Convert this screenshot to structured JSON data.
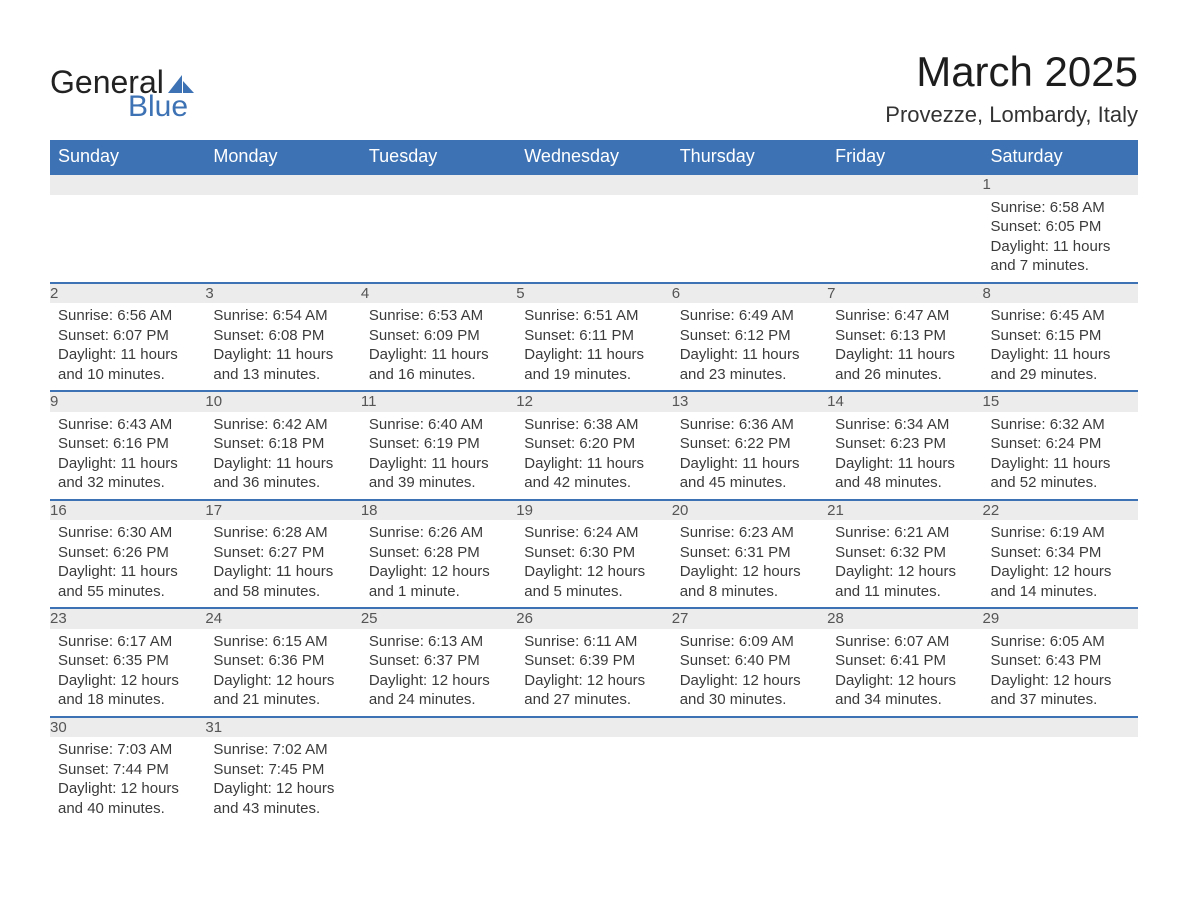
{
  "logo": {
    "text1": "General",
    "text2": "Blue",
    "triangle_fill": "#3d72b4"
  },
  "title": "March 2025",
  "location": "Provezze, Lombardy, Italy",
  "colors": {
    "header_bg": "#3d72b4",
    "header_text": "#ffffff",
    "daynum_bg": "#ececec",
    "row_border": "#3d72b4",
    "body_text": "#3b3b3b",
    "page_bg": "#ffffff"
  },
  "fonts": {
    "title_size_pt": 42,
    "location_size_pt": 22,
    "dayheader_size_pt": 18,
    "daynum_size_pt": 17,
    "body_size_pt": 15
  },
  "day_headers": [
    "Sunday",
    "Monday",
    "Tuesday",
    "Wednesday",
    "Thursday",
    "Friday",
    "Saturday"
  ],
  "labels": {
    "sunrise": "Sunrise:",
    "sunset": "Sunset:",
    "daylight": "Daylight:"
  },
  "weeks": [
    [
      null,
      null,
      null,
      null,
      null,
      null,
      {
        "n": "1",
        "sunrise": "6:58 AM",
        "sunset": "6:05 PM",
        "daylight": "11 hours and 7 minutes."
      }
    ],
    [
      {
        "n": "2",
        "sunrise": "6:56 AM",
        "sunset": "6:07 PM",
        "daylight": "11 hours and 10 minutes."
      },
      {
        "n": "3",
        "sunrise": "6:54 AM",
        "sunset": "6:08 PM",
        "daylight": "11 hours and 13 minutes."
      },
      {
        "n": "4",
        "sunrise": "6:53 AM",
        "sunset": "6:09 PM",
        "daylight": "11 hours and 16 minutes."
      },
      {
        "n": "5",
        "sunrise": "6:51 AM",
        "sunset": "6:11 PM",
        "daylight": "11 hours and 19 minutes."
      },
      {
        "n": "6",
        "sunrise": "6:49 AM",
        "sunset": "6:12 PM",
        "daylight": "11 hours and 23 minutes."
      },
      {
        "n": "7",
        "sunrise": "6:47 AM",
        "sunset": "6:13 PM",
        "daylight": "11 hours and 26 minutes."
      },
      {
        "n": "8",
        "sunrise": "6:45 AM",
        "sunset": "6:15 PM",
        "daylight": "11 hours and 29 minutes."
      }
    ],
    [
      {
        "n": "9",
        "sunrise": "6:43 AM",
        "sunset": "6:16 PM",
        "daylight": "11 hours and 32 minutes."
      },
      {
        "n": "10",
        "sunrise": "6:42 AM",
        "sunset": "6:18 PM",
        "daylight": "11 hours and 36 minutes."
      },
      {
        "n": "11",
        "sunrise": "6:40 AM",
        "sunset": "6:19 PM",
        "daylight": "11 hours and 39 minutes."
      },
      {
        "n": "12",
        "sunrise": "6:38 AM",
        "sunset": "6:20 PM",
        "daylight": "11 hours and 42 minutes."
      },
      {
        "n": "13",
        "sunrise": "6:36 AM",
        "sunset": "6:22 PM",
        "daylight": "11 hours and 45 minutes."
      },
      {
        "n": "14",
        "sunrise": "6:34 AM",
        "sunset": "6:23 PM",
        "daylight": "11 hours and 48 minutes."
      },
      {
        "n": "15",
        "sunrise": "6:32 AM",
        "sunset": "6:24 PM",
        "daylight": "11 hours and 52 minutes."
      }
    ],
    [
      {
        "n": "16",
        "sunrise": "6:30 AM",
        "sunset": "6:26 PM",
        "daylight": "11 hours and 55 minutes."
      },
      {
        "n": "17",
        "sunrise": "6:28 AM",
        "sunset": "6:27 PM",
        "daylight": "11 hours and 58 minutes."
      },
      {
        "n": "18",
        "sunrise": "6:26 AM",
        "sunset": "6:28 PM",
        "daylight": "12 hours and 1 minute."
      },
      {
        "n": "19",
        "sunrise": "6:24 AM",
        "sunset": "6:30 PM",
        "daylight": "12 hours and 5 minutes."
      },
      {
        "n": "20",
        "sunrise": "6:23 AM",
        "sunset": "6:31 PM",
        "daylight": "12 hours and 8 minutes."
      },
      {
        "n": "21",
        "sunrise": "6:21 AM",
        "sunset": "6:32 PM",
        "daylight": "12 hours and 11 minutes."
      },
      {
        "n": "22",
        "sunrise": "6:19 AM",
        "sunset": "6:34 PM",
        "daylight": "12 hours and 14 minutes."
      }
    ],
    [
      {
        "n": "23",
        "sunrise": "6:17 AM",
        "sunset": "6:35 PM",
        "daylight": "12 hours and 18 minutes."
      },
      {
        "n": "24",
        "sunrise": "6:15 AM",
        "sunset": "6:36 PM",
        "daylight": "12 hours and 21 minutes."
      },
      {
        "n": "25",
        "sunrise": "6:13 AM",
        "sunset": "6:37 PM",
        "daylight": "12 hours and 24 minutes."
      },
      {
        "n": "26",
        "sunrise": "6:11 AM",
        "sunset": "6:39 PM",
        "daylight": "12 hours and 27 minutes."
      },
      {
        "n": "27",
        "sunrise": "6:09 AM",
        "sunset": "6:40 PM",
        "daylight": "12 hours and 30 minutes."
      },
      {
        "n": "28",
        "sunrise": "6:07 AM",
        "sunset": "6:41 PM",
        "daylight": "12 hours and 34 minutes."
      },
      {
        "n": "29",
        "sunrise": "6:05 AM",
        "sunset": "6:43 PM",
        "daylight": "12 hours and 37 minutes."
      }
    ],
    [
      {
        "n": "30",
        "sunrise": "7:03 AM",
        "sunset": "7:44 PM",
        "daylight": "12 hours and 40 minutes."
      },
      {
        "n": "31",
        "sunrise": "7:02 AM",
        "sunset": "7:45 PM",
        "daylight": "12 hours and 43 minutes."
      },
      null,
      null,
      null,
      null,
      null
    ]
  ]
}
